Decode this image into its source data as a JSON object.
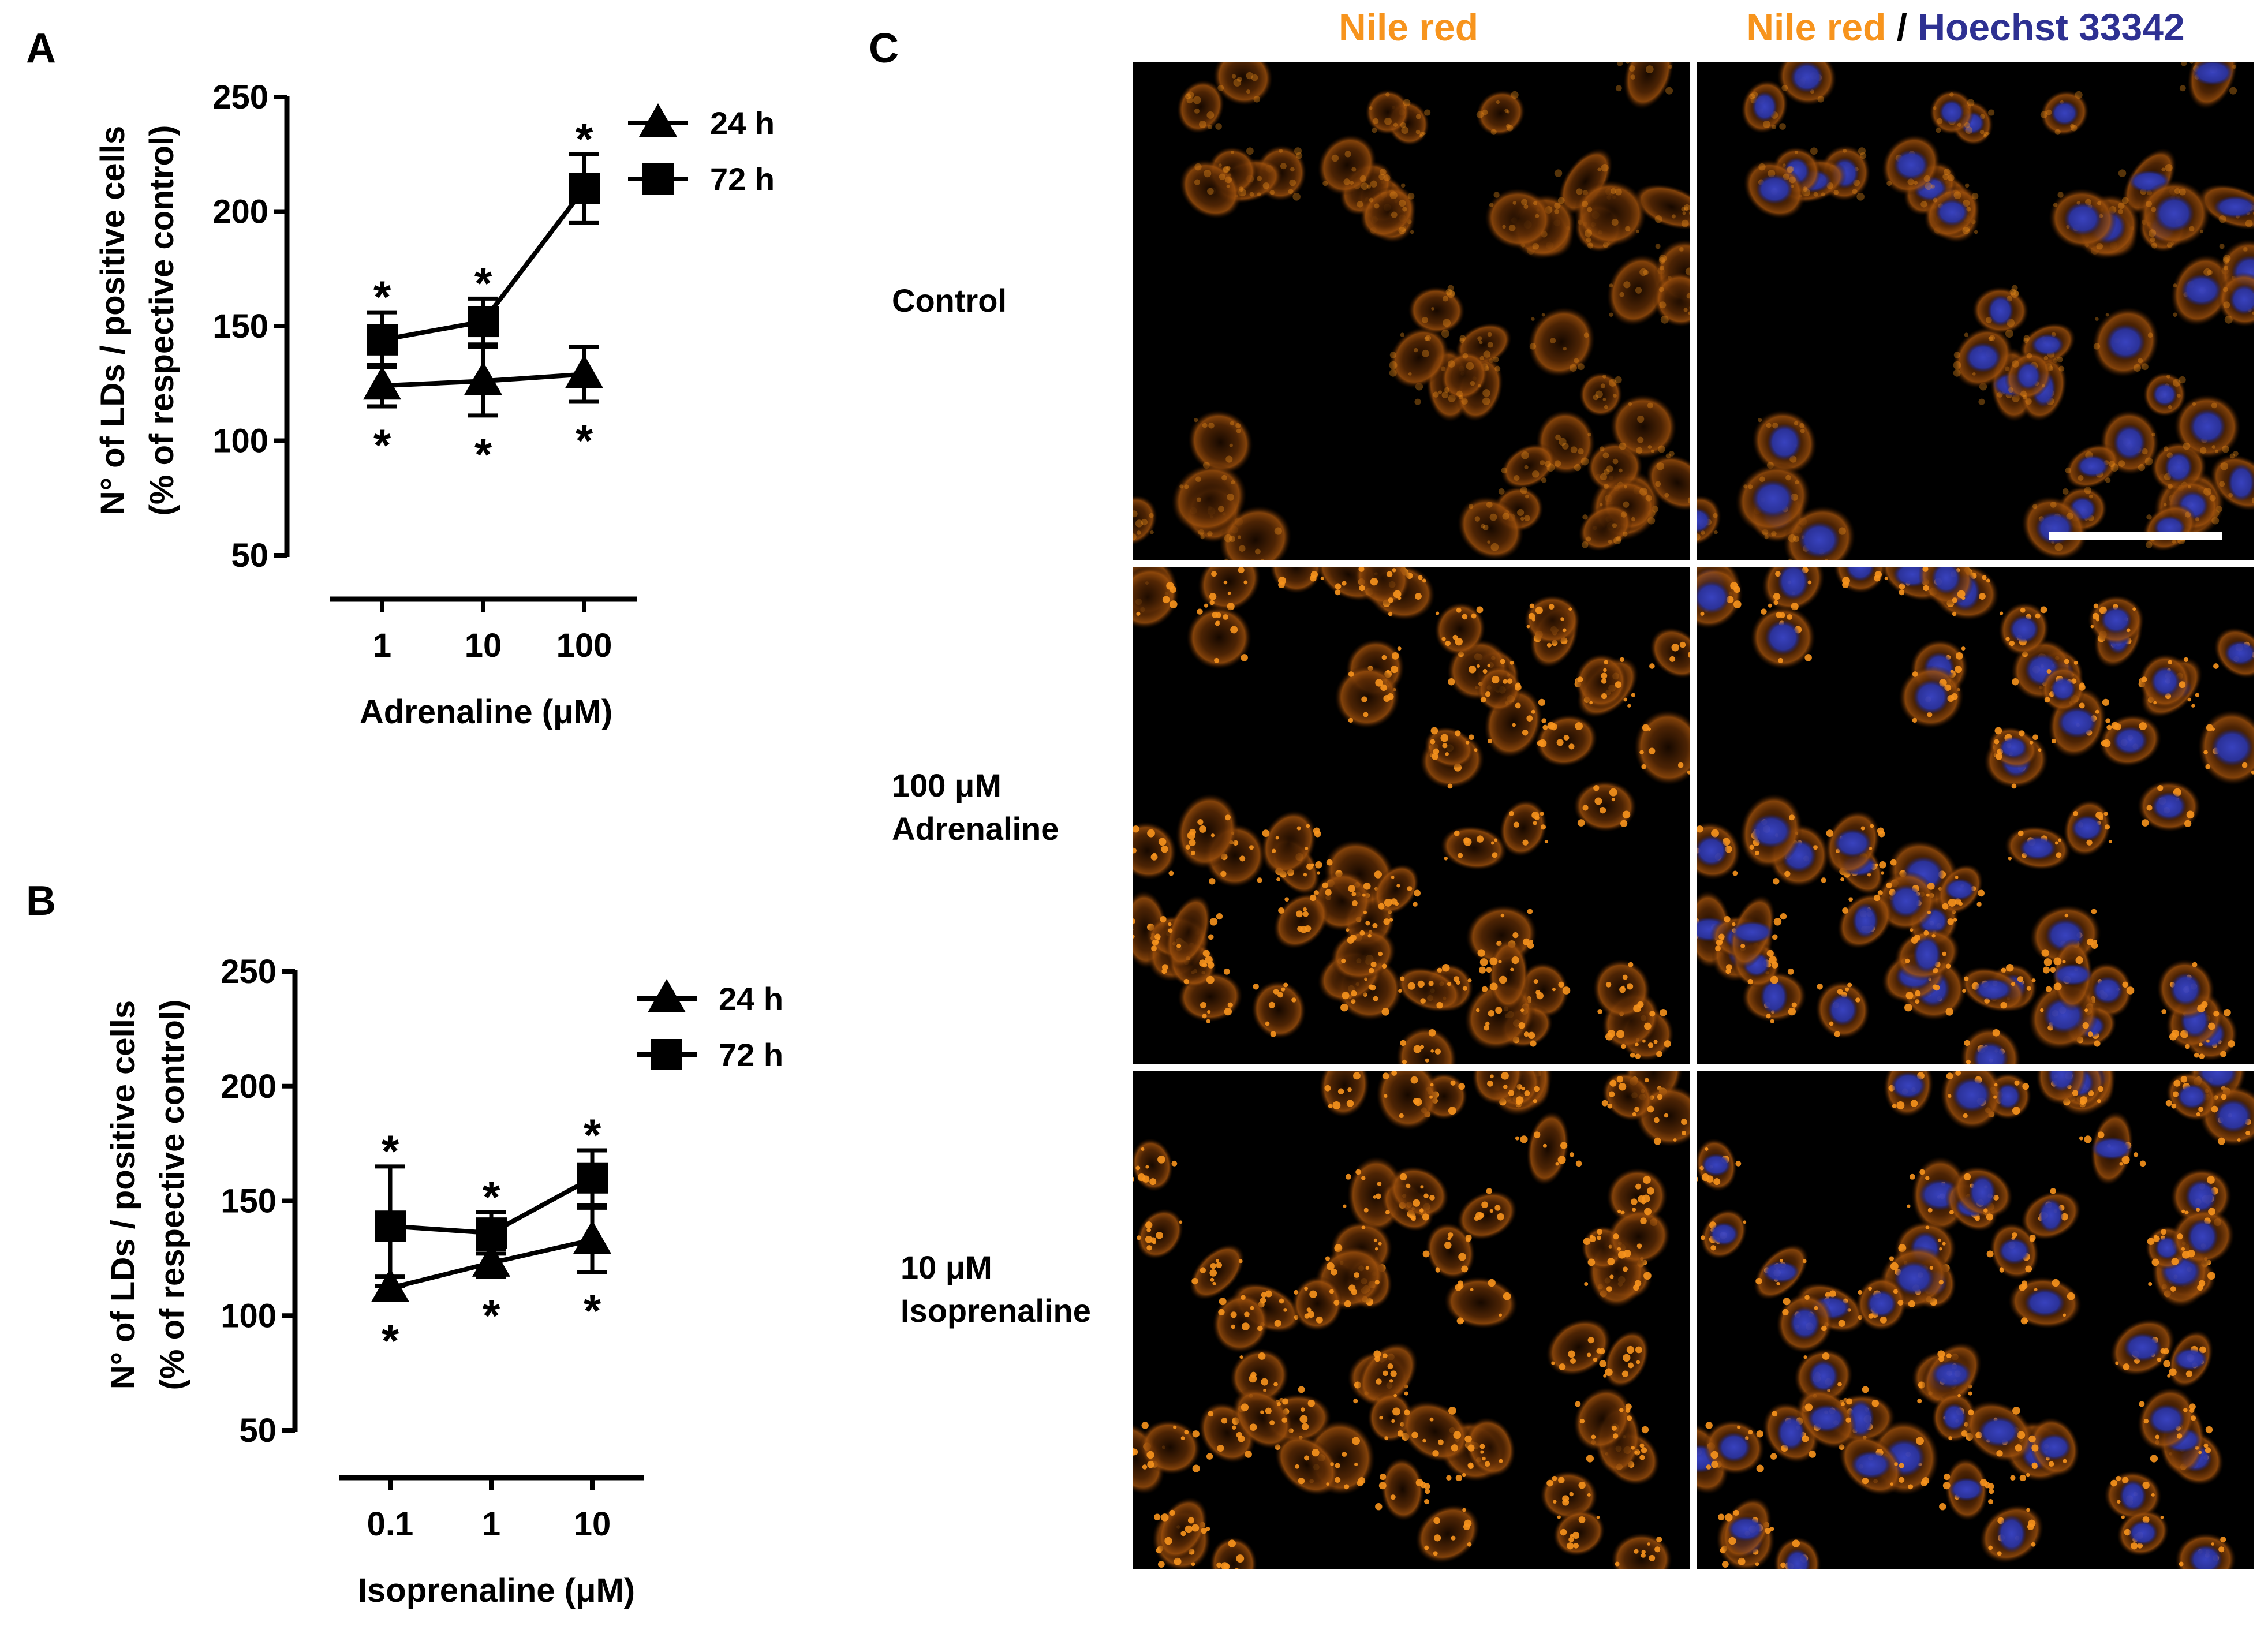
{
  "panel_labels": {
    "a": "A",
    "b": "B",
    "c": "C"
  },
  "chart_data": [
    {
      "type": "line",
      "panel": "A",
      "categories": [
        "1",
        "10",
        "100"
      ],
      "xlabel": "Adrenaline (μM)",
      "ylabel_line1": "N° of LDs / positive cells",
      "ylabel_line2": "(% of respective control)",
      "ylim": [
        50,
        250
      ],
      "yticks": [
        50,
        100,
        150,
        200,
        250
      ],
      "legend_position": "top-right",
      "series": [
        {
          "name": "24 h",
          "marker": "triangle",
          "values": [
            124,
            126,
            129
          ],
          "errors": [
            9,
            15,
            12
          ],
          "significance": [
            "*",
            "*",
            "*"
          ],
          "significance_position": "below"
        },
        {
          "name": "72 h",
          "marker": "square",
          "values": [
            144,
            152,
            210
          ],
          "errors": [
            12,
            10,
            15
          ],
          "significance": [
            "*",
            "*",
            "*"
          ],
          "significance_position": "above"
        }
      ]
    },
    {
      "type": "line",
      "panel": "B",
      "categories": [
        "0.1",
        "1",
        "10"
      ],
      "xlabel": "Isoprenaline (μM)",
      "ylabel_line1": "N° of LDs / positive cells",
      "ylabel_line2": "(% of respective control)",
      "ylim": [
        50,
        250
      ],
      "yticks": [
        50,
        100,
        150,
        200,
        250
      ],
      "legend_position": "top-right",
      "series": [
        {
          "name": "24 h",
          "marker": "triangle",
          "values": [
            112,
            123,
            133
          ],
          "errors": [
            5,
            6,
            14
          ],
          "significance": [
            "*",
            "*",
            "*"
          ],
          "significance_position": "below"
        },
        {
          "name": "72 h",
          "marker": "square",
          "values": [
            139,
            136,
            160
          ],
          "errors": [
            26,
            9,
            12
          ],
          "significance": [
            "*",
            "*",
            "*"
          ],
          "significance_position": "above"
        }
      ]
    }
  ],
  "micrographs": {
    "column_headers": {
      "nile_red": "Nile red",
      "merge_part1": "Nile red",
      "merge_separator": " / ",
      "merge_part2": "Hoechst 33342"
    },
    "row_labels": [
      {
        "line1": "Control",
        "line2": ""
      },
      {
        "line1": "100 μM",
        "line2": "Adrenaline"
      },
      {
        "line1": "10 μM",
        "line2": "Isoprenaline"
      }
    ],
    "colors": {
      "nile_red": "#f7941d",
      "hoechst": "#2e3192",
      "background": "#000000",
      "separator": "#ffffff"
    },
    "has_scale_bar": true
  }
}
